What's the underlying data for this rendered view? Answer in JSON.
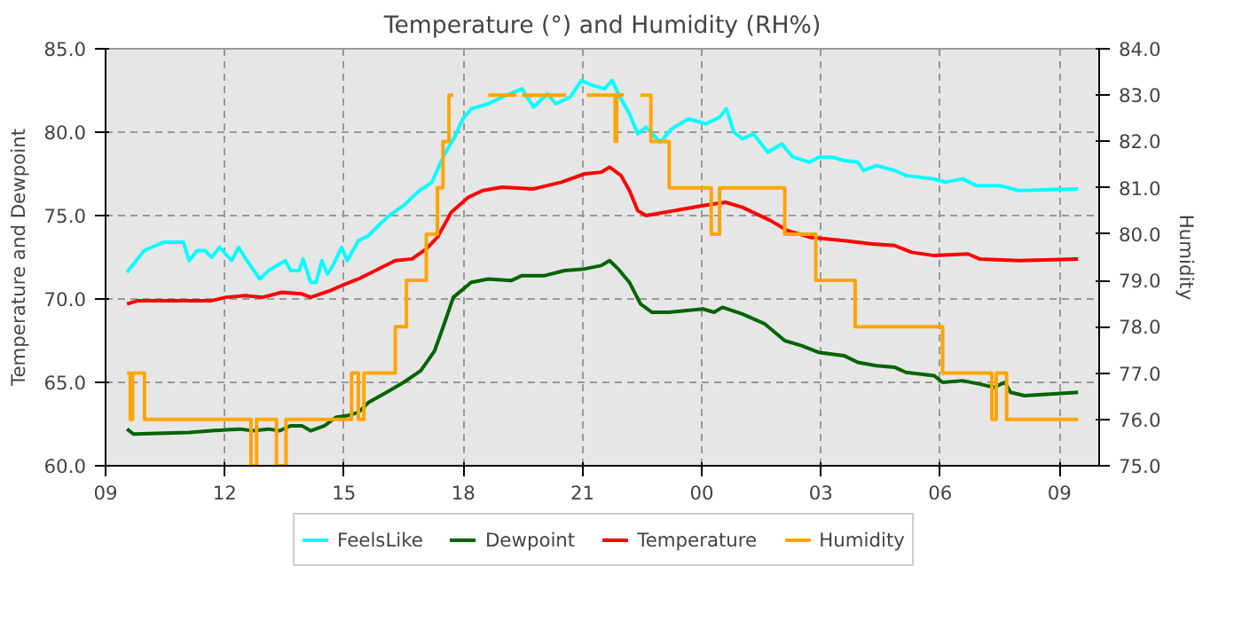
{
  "chart_data": {
    "type": "line",
    "title": "Temperature (°) and Humidity (RH%)",
    "ylabel": "Temperature and Dewpoint",
    "y2label": "Humidity",
    "xlim": [
      9,
      34
    ],
    "xticks": [
      {
        "value": 9,
        "label": "09"
      },
      {
        "value": 12,
        "label": "12"
      },
      {
        "value": 15,
        "label": "15"
      },
      {
        "value": 18,
        "label": "18"
      },
      {
        "value": 21,
        "label": "21"
      },
      {
        "value": 24,
        "label": "00"
      },
      {
        "value": 27,
        "label": "03"
      },
      {
        "value": 30,
        "label": "06"
      },
      {
        "value": 33,
        "label": "09"
      }
    ],
    "ylim": [
      60,
      85
    ],
    "yticks": [
      {
        "value": 60,
        "label": "60.0"
      },
      {
        "value": 65,
        "label": "65.0"
      },
      {
        "value": 70,
        "label": "70.0"
      },
      {
        "value": 75,
        "label": "75.0"
      },
      {
        "value": 80,
        "label": "80.0"
      },
      {
        "value": 85,
        "label": "85.0"
      }
    ],
    "y2lim": [
      75,
      84
    ],
    "y2ticks": [
      {
        "value": 75,
        "label": "75.0"
      },
      {
        "value": 76,
        "label": "76.0"
      },
      {
        "value": 77,
        "label": "77.0"
      },
      {
        "value": 78,
        "label": "78.0"
      },
      {
        "value": 79,
        "label": "79.0"
      },
      {
        "value": 80,
        "label": "80.0"
      },
      {
        "value": 81,
        "label": "81.0"
      },
      {
        "value": 82,
        "label": "82.0"
      },
      {
        "value": 83,
        "label": "83.0"
      },
      {
        "value": 84,
        "label": "84.0"
      }
    ],
    "grid": true,
    "legend": "bottom",
    "marker": "none",
    "line_style": "solid",
    "series": [
      {
        "name": "FeelsLike",
        "color": "#00ffff",
        "x": [
          9.54,
          9.97,
          10.45,
          10.96,
          11.1,
          11.3,
          11.5,
          11.67,
          11.87,
          12.17,
          12.35,
          12.5,
          12.88,
          13.1,
          13.52,
          13.66,
          13.87,
          13.97,
          14.16,
          14.3,
          14.44,
          14.58,
          14.72,
          14.94,
          15.08,
          15.36,
          15.62,
          15.86,
          16.14,
          16.5,
          16.85,
          17.21,
          17.49,
          17.78,
          17.99,
          18.2,
          18.63,
          18.98,
          19.48,
          19.77,
          20.12,
          20.33,
          20.69,
          20.97,
          21.26,
          21.55,
          21.75,
          21.9,
          22.18,
          22.39,
          22.6,
          22.96,
          23.24,
          23.67,
          24.1,
          24.45,
          24.62,
          24.81,
          25.02,
          25.3,
          25.66,
          26.01,
          26.3,
          26.72,
          26.94,
          27.29,
          27.58,
          27.93,
          28.07,
          28.4,
          28.86,
          29.14,
          29.85,
          30.13,
          30.56,
          30.91,
          31.49,
          31.98,
          33.47
        ],
        "values": [
          71.6,
          72.9,
          73.4,
          73.4,
          72.3,
          72.9,
          72.9,
          72.5,
          73.1,
          72.3,
          73.1,
          72.5,
          71.2,
          71.7,
          72.3,
          71.7,
          71.7,
          72.4,
          71.0,
          71.0,
          72.3,
          71.5,
          72.0,
          73.1,
          72.3,
          73.5,
          73.8,
          74.4,
          75.0,
          75.6,
          76.4,
          77.0,
          78.5,
          79.7,
          80.8,
          81.4,
          81.7,
          82.1,
          82.6,
          81.5,
          82.3,
          81.7,
          82.1,
          83.1,
          82.8,
          82.6,
          83.1,
          82.3,
          81.1,
          79.9,
          80.3,
          79.4,
          80.2,
          80.8,
          80.5,
          80.9,
          81.4,
          80.0,
          79.6,
          79.9,
          78.8,
          79.3,
          78.5,
          78.2,
          78.5,
          78.5,
          78.3,
          78.2,
          77.7,
          78.0,
          77.7,
          77.4,
          77.2,
          77.0,
          77.2,
          76.8,
          76.8,
          76.5,
          76.6
        ]
      },
      {
        "name": "Dewpoint",
        "color": "#006400",
        "x": [
          9.54,
          9.7,
          11.1,
          11.67,
          12.38,
          12.7,
          13.1,
          13.38,
          13.66,
          13.94,
          14.16,
          14.51,
          14.79,
          15.08,
          15.36,
          15.62,
          16.07,
          16.5,
          16.93,
          17.28,
          17.49,
          17.75,
          18.2,
          18.63,
          19.2,
          19.48,
          20.05,
          20.55,
          21.05,
          21.47,
          21.68,
          21.9,
          22.18,
          22.46,
          22.75,
          23.18,
          24.03,
          24.31,
          24.52,
          25.02,
          25.59,
          26.09,
          26.51,
          26.94,
          27.58,
          27.93,
          28.4,
          28.86,
          29.14,
          29.85,
          30.06,
          30.56,
          30.99,
          31.35,
          31.63,
          31.77,
          32.12,
          33.47
        ],
        "values": [
          62.2,
          61.9,
          62.0,
          62.1,
          62.2,
          62.1,
          62.2,
          62.1,
          62.4,
          62.4,
          62.1,
          62.4,
          62.9,
          63.0,
          63.2,
          63.8,
          64.4,
          65.0,
          65.7,
          66.9,
          68.3,
          70.1,
          71.0,
          71.2,
          71.1,
          71.4,
          71.4,
          71.7,
          71.8,
          72.0,
          72.3,
          71.8,
          71.0,
          69.7,
          69.2,
          69.2,
          69.4,
          69.2,
          69.5,
          69.1,
          68.5,
          67.5,
          67.2,
          66.8,
          66.6,
          66.2,
          66.0,
          65.9,
          65.6,
          65.4,
          65.0,
          65.1,
          64.9,
          64.7,
          65.0,
          64.4,
          64.2,
          64.4
        ]
      },
      {
        "name": "Temperature",
        "color": "#ff0000",
        "x": [
          9.54,
          9.82,
          11.67,
          12.03,
          12.52,
          12.95,
          13.44,
          13.94,
          14.16,
          14.65,
          14.94,
          15.36,
          15.62,
          16.29,
          16.71,
          17.07,
          17.35,
          17.7,
          18.13,
          18.49,
          18.98,
          19.77,
          20.47,
          21.05,
          21.47,
          21.68,
          21.97,
          22.18,
          22.39,
          22.6,
          23.32,
          24.03,
          24.6,
          25.02,
          25.73,
          26.16,
          26.72,
          27.58,
          28.29,
          28.86,
          29.28,
          29.85,
          30.7,
          30.99,
          31.98,
          33.47
        ],
        "values": [
          69.7,
          69.9,
          69.9,
          70.1,
          70.2,
          70.1,
          70.4,
          70.3,
          70.1,
          70.5,
          70.8,
          71.2,
          71.5,
          72.3,
          72.4,
          73.0,
          73.7,
          75.2,
          76.1,
          76.5,
          76.7,
          76.6,
          77.0,
          77.5,
          77.6,
          77.9,
          77.4,
          76.5,
          75.3,
          75.0,
          75.3,
          75.6,
          75.8,
          75.5,
          74.7,
          74.1,
          73.7,
          73.5,
          73.3,
          73.2,
          72.8,
          72.6,
          72.7,
          72.4,
          72.3,
          72.4
        ]
      },
      {
        "name": "Humidity",
        "color": "#ffa500",
        "type": "step",
        "axis": "y2",
        "x": [
          9.54,
          9.62,
          9.68,
          9.98,
          12.66,
          12.8,
          13.3,
          13.54,
          15.19,
          15.36,
          15.5,
          16.29,
          16.57,
          17.07,
          17.35,
          17.49,
          17.64,
          17.75,
          18.63,
          19.34,
          19.48,
          20.59,
          21.11,
          21.82,
          21.86,
          22.04,
          22.46,
          22.72,
          23.18,
          24.24,
          24.45,
          26.09,
          26.87,
          27.86,
          30.06,
          31.3,
          31.41,
          31.67,
          33.47
        ],
        "values": [
          77,
          76,
          77,
          76,
          75,
          76,
          75,
          76,
          77,
          76,
          77,
          78,
          79,
          80,
          81,
          82,
          83,
          null,
          83,
          null,
          83,
          null,
          83,
          82,
          83,
          null,
          83,
          82,
          81,
          80,
          81,
          80,
          79,
          78,
          77,
          76,
          77,
          76,
          76
        ]
      }
    ]
  }
}
